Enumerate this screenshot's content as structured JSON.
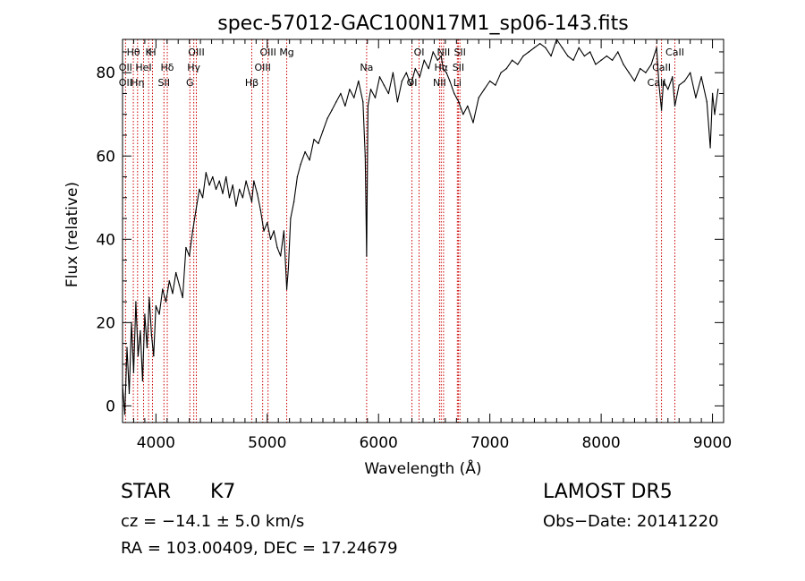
{
  "chart_data": {
    "type": "line",
    "title": "spec-57012-GAC100N17M1_sp06-143.fits",
    "xlabel": "Wavelength (Å)",
    "ylabel": "Flux (relative)",
    "xlim": [
      3700,
      9100
    ],
    "ylim": [
      -4,
      88
    ],
    "xticks": [
      4000,
      5000,
      6000,
      7000,
      8000,
      9000
    ],
    "yticks": [
      0,
      20,
      40,
      60,
      80
    ],
    "grid": false,
    "line_color": "#000000",
    "marker_color": "#cc0000",
    "spectrum": {
      "x": [
        3700,
        3720,
        3740,
        3760,
        3780,
        3800,
        3820,
        3840,
        3860,
        3880,
        3900,
        3920,
        3940,
        3960,
        3980,
        4000,
        4030,
        4060,
        4090,
        4120,
        4150,
        4180,
        4210,
        4240,
        4270,
        4300,
        4330,
        4360,
        4390,
        4420,
        4450,
        4480,
        4510,
        4540,
        4570,
        4600,
        4630,
        4660,
        4690,
        4720,
        4750,
        4780,
        4810,
        4840,
        4861,
        4880,
        4910,
        4940,
        4970,
        5000,
        5030,
        5060,
        5090,
        5120,
        5150,
        5175,
        5190,
        5210,
        5240,
        5270,
        5300,
        5340,
        5380,
        5420,
        5460,
        5500,
        5540,
        5580,
        5620,
        5660,
        5700,
        5740,
        5780,
        5820,
        5860,
        5880,
        5893,
        5905,
        5930,
        5970,
        6010,
        6050,
        6090,
        6130,
        6170,
        6210,
        6250,
        6290,
        6330,
        6370,
        6410,
        6450,
        6490,
        6530,
        6563,
        6580,
        6610,
        6640,
        6680,
        6720,
        6760,
        6800,
        6850,
        6900,
        6950,
        7000,
        7050,
        7100,
        7150,
        7200,
        7250,
        7300,
        7350,
        7400,
        7450,
        7500,
        7550,
        7600,
        7650,
        7700,
        7750,
        7800,
        7850,
        7900,
        7950,
        8000,
        8050,
        8100,
        8150,
        8200,
        8250,
        8300,
        8350,
        8400,
        8450,
        8498,
        8520,
        8542,
        8560,
        8600,
        8640,
        8662,
        8700,
        8750,
        8800,
        8850,
        8900,
        8950,
        8980,
        9000,
        9020,
        9050
      ],
      "y": [
        5,
        -2,
        14,
        3,
        20,
        8,
        25,
        12,
        18,
        6,
        22,
        14,
        26,
        17,
        12,
        24,
        22,
        28,
        25,
        30,
        27,
        32,
        29,
        26,
        38,
        36,
        42,
        47,
        52,
        50,
        56,
        53,
        55,
        52,
        54,
        51,
        55,
        50,
        53,
        48,
        52,
        50,
        54,
        51,
        49,
        54,
        51,
        47,
        42,
        44,
        40,
        42,
        38,
        36,
        42,
        28,
        33,
        45,
        49,
        55,
        58,
        61,
        59,
        64,
        63,
        66,
        69,
        71,
        73,
        75,
        72,
        76,
        74,
        78,
        73,
        60,
        36,
        72,
        76,
        74,
        79,
        77,
        75,
        80,
        73,
        78,
        80,
        77,
        81,
        79,
        83,
        81,
        85,
        83,
        84,
        81,
        80,
        78,
        75,
        73,
        70,
        72,
        68,
        74,
        76,
        78,
        77,
        80,
        81,
        83,
        82,
        84,
        85,
        86,
        87,
        86,
        84,
        88,
        86,
        84,
        83,
        86,
        84,
        85,
        82,
        83,
        84,
        83,
        85,
        82,
        80,
        78,
        81,
        80,
        82,
        86,
        77,
        71,
        78,
        76,
        79,
        72,
        77,
        78,
        80,
        74,
        79,
        73,
        62,
        75,
        70,
        76
      ]
    },
    "lines": [
      {
        "name": "Hθ",
        "wave": 3797
      },
      {
        "name": "OII",
        "wave": 3727
      },
      {
        "name": "OII",
        "wave": 3727
      },
      {
        "name": "K",
        "wave": 3934
      },
      {
        "name": "HeI",
        "wave": 3889
      },
      {
        "name": "Hη",
        "wave": 3835
      },
      {
        "name": "H",
        "wave": 3969
      },
      {
        "name": "Hδ",
        "wave": 4102
      },
      {
        "name": "SII",
        "wave": 4072
      },
      {
        "name": "OIII",
        "wave": 4363
      },
      {
        "name": "Hγ",
        "wave": 4340
      },
      {
        "name": "G",
        "wave": 4305
      },
      {
        "name": "OIII",
        "wave": 5007
      },
      {
        "name": "OIII",
        "wave": 4959
      },
      {
        "name": "Hβ",
        "wave": 4861
      },
      {
        "name": "Mg",
        "wave": 5175
      },
      {
        "name": "Na",
        "wave": 5893
      },
      {
        "name": "OI",
        "wave": 6300
      },
      {
        "name": "OI",
        "wave": 6364
      },
      {
        "name": "Hα",
        "wave": 6563
      },
      {
        "name": "NII",
        "wave": 6548
      },
      {
        "name": "NII",
        "wave": 6584
      },
      {
        "name": "SII",
        "wave": 6717
      },
      {
        "name": "Li",
        "wave": 6708
      },
      {
        "name": "SII",
        "wave": 6731
      },
      {
        "name": "CaII",
        "wave": 8542
      },
      {
        "name": "CaII",
        "wave": 8498
      },
      {
        "name": "CaII",
        "wave": 8662
      }
    ]
  },
  "info": {
    "object_class": "STAR",
    "subclass": "K7",
    "survey": "LAMOST DR5",
    "cz": "cz = −14.1 ± 5.0 km/s",
    "obs_date": "Obs−Date: 20141220",
    "radec": "RA = 103.00409, DEC =  17.24679"
  }
}
